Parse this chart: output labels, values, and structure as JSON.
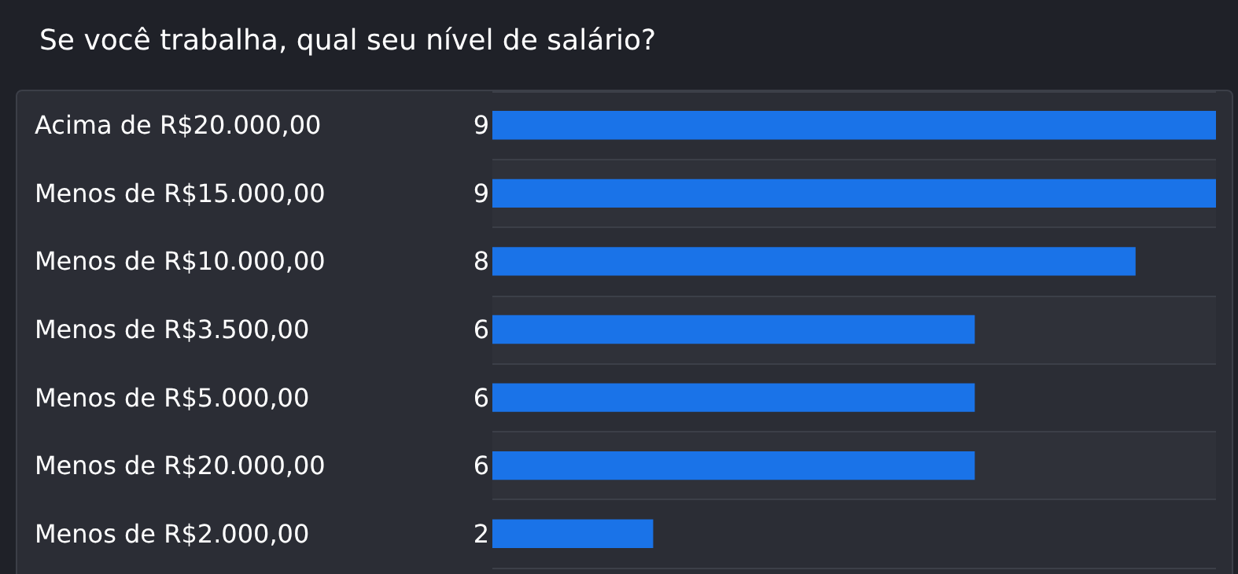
{
  "chart_data": {
    "type": "bar",
    "orientation": "horizontal",
    "title": "Se você trabalha, qual seu nível de salário?",
    "categories": [
      "Acima de R$20.000,00",
      "Menos de R$15.000,00",
      "Menos de R$10.000,00",
      "Menos de R$3.500,00",
      "Menos de R$5.000,00",
      "Menos de R$20.000,00",
      "Menos de R$2.000,00"
    ],
    "values": [
      9,
      9,
      8,
      6,
      6,
      6,
      2
    ],
    "color": "#1a73e8",
    "data_labels": true,
    "grid": "y"
  }
}
